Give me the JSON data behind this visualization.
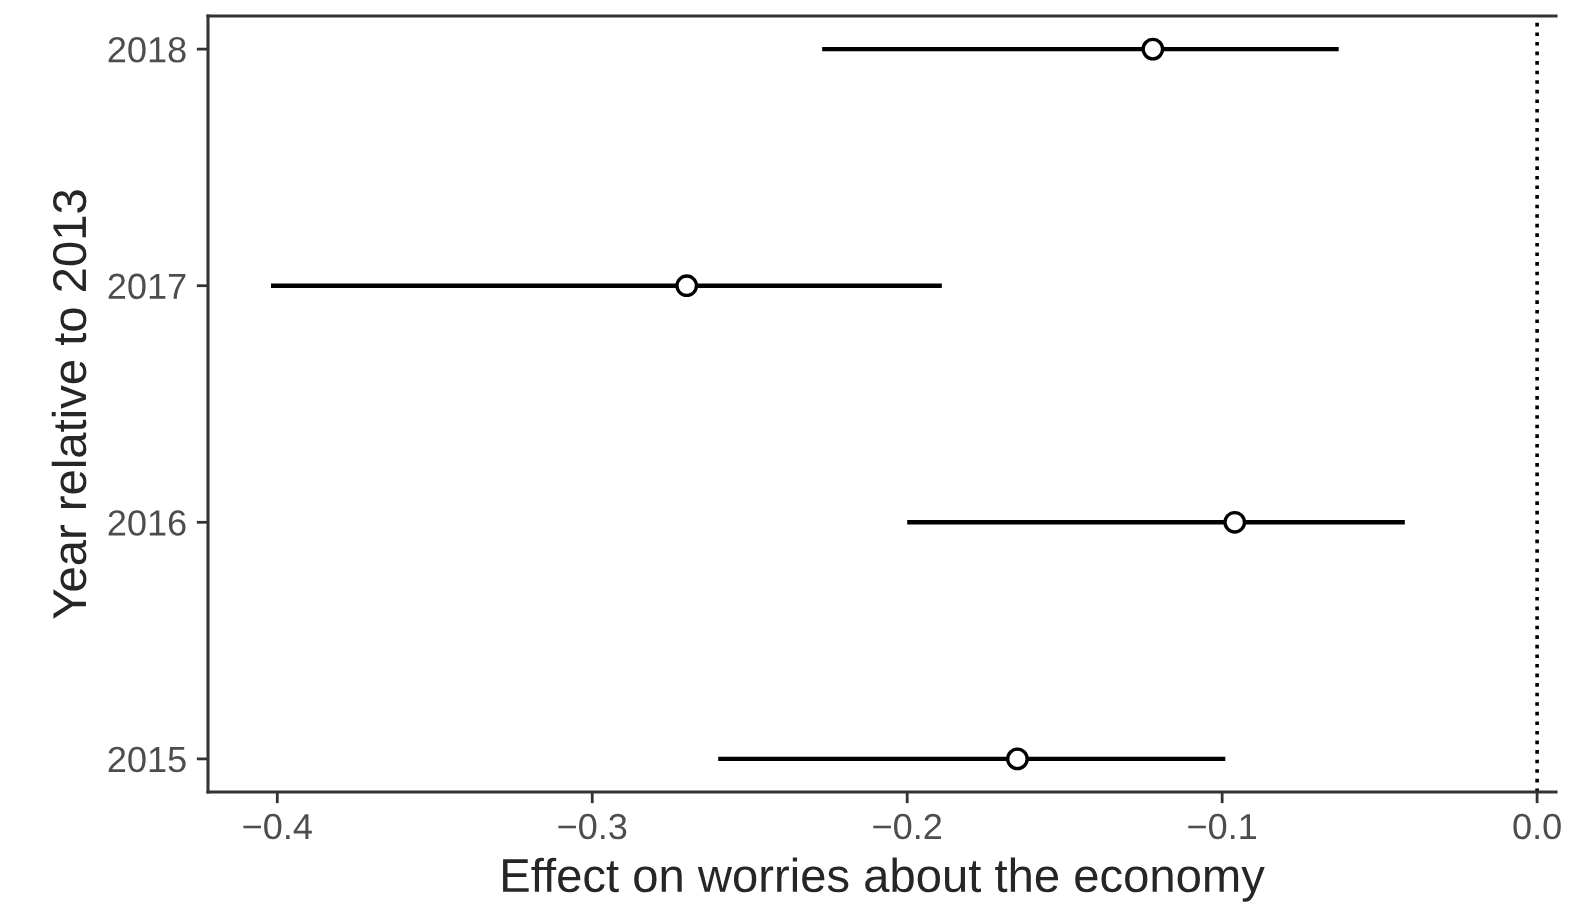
{
  "chart_data": {
    "type": "scatter",
    "orientation": "horizontal",
    "xlabel": "Effect on worries about the economy",
    "ylabel": "Year relative to 2013",
    "categories": [
      "2018",
      "2017",
      "2016",
      "2015"
    ],
    "series": [
      {
        "color": "#000000",
        "values": [
          -0.122,
          -0.27,
          -0.096,
          -0.165
        ],
        "errors": [
          [
            -0.227,
            -0.063
          ],
          [
            -0.402,
            -0.189
          ],
          [
            -0.2,
            -0.042
          ],
          [
            -0.26,
            -0.099
          ]
        ]
      }
    ],
    "marker": "circle",
    "grid": false,
    "xlim": [
      -0.422,
      0.006
    ],
    "xticks": [
      {
        "value": -0.4,
        "label": "−0.4"
      },
      {
        "value": -0.3,
        "label": "−0.3"
      },
      {
        "value": -0.2,
        "label": "−0.2"
      },
      {
        "value": -0.1,
        "label": "−0.1"
      },
      {
        "value": 0.0,
        "label": "0.0"
      }
    ],
    "ref_lines": [
      {
        "axis": "x",
        "value": 0,
        "line_style": "dotted",
        "color": "#000000"
      }
    ]
  }
}
